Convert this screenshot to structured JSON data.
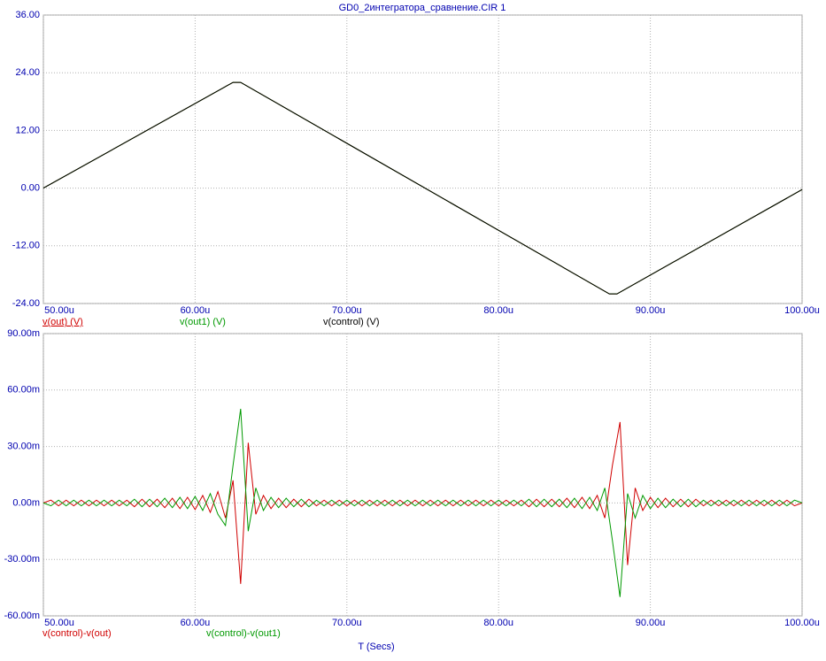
{
  "chart_data": [
    {
      "type": "line",
      "title": "GD0_2интегратора_сравнение.CIR 1",
      "x": [
        50,
        62.5,
        63,
        87.3,
        87.8,
        100
      ],
      "series": [
        {
          "name": "v(out) (V)",
          "color": "#d00000",
          "values": [
            0,
            22,
            22,
            -22,
            -22,
            -0.3
          ]
        },
        {
          "name": "v(out1) (V)",
          "color": "#009900",
          "values": [
            0,
            22,
            22,
            -22,
            -22,
            -0.3
          ]
        },
        {
          "name": "v(control) (V)",
          "color": "#000000",
          "values": [
            0,
            22,
            22,
            -22,
            -22,
            -0.3
          ]
        }
      ],
      "xlim": [
        50,
        100
      ],
      "xticks": [
        {
          "value": 50,
          "label": "50.00u"
        },
        {
          "value": 60,
          "label": "60.00u"
        },
        {
          "value": 70,
          "label": "70.00u"
        },
        {
          "value": 80,
          "label": "80.00u"
        },
        {
          "value": 90,
          "label": "90.00u"
        },
        {
          "value": 100,
          "label": "100.00u"
        }
      ],
      "ylim": [
        -24,
        36
      ],
      "yticks": [
        {
          "value": 36,
          "label": "36.00"
        },
        {
          "value": 24,
          "label": "24.00"
        },
        {
          "value": 12,
          "label": "12.00"
        },
        {
          "value": 0,
          "label": "0.00"
        },
        {
          "value": -12,
          "label": "-12.00"
        },
        {
          "value": -24,
          "label": "-24.00"
        }
      ],
      "grid": true
    },
    {
      "type": "line",
      "xlabel": "T (Secs)",
      "x": [
        50,
        50.5,
        51,
        51.5,
        52,
        52.5,
        53,
        53.5,
        54,
        54.5,
        55,
        55.5,
        56,
        56.5,
        57,
        57.5,
        58,
        58.5,
        59,
        59.5,
        60,
        60.5,
        61,
        61.5,
        62,
        62.5,
        63,
        63.5,
        64,
        64.5,
        65,
        65.5,
        66,
        66.5,
        67,
        67.5,
        68,
        68.5,
        69,
        69.5,
        70,
        70.5,
        71,
        71.5,
        72,
        72.5,
        73,
        73.5,
        74,
        74.5,
        75,
        75.5,
        76,
        76.5,
        77,
        77.5,
        78,
        78.5,
        79,
        79.5,
        80,
        80.5,
        81,
        81.5,
        82,
        82.5,
        83,
        83.5,
        84,
        84.5,
        85,
        85.5,
        86,
        86.5,
        87,
        87.5,
        88,
        88.5,
        89,
        89.5,
        90,
        90.5,
        91,
        91.5,
        92,
        92.5,
        93,
        93.5,
        94,
        94.5,
        95,
        95.5,
        96,
        96.5,
        97,
        97.5,
        98,
        98.5,
        99,
        99.5,
        100
      ],
      "series": [
        {
          "name": "v(control)-v(out)",
          "color": "#d00000",
          "values": [
            0,
            1.5,
            -1.5,
            1.5,
            -1.5,
            1.5,
            -1.5,
            1.5,
            -1.5,
            1.5,
            -1.5,
            1.5,
            -2,
            2,
            -2,
            2,
            -2.5,
            2.5,
            -3,
            3,
            -3.5,
            4,
            -5,
            6,
            -8,
            12,
            -43,
            32,
            -6,
            4,
            -3,
            2.5,
            -2.5,
            2,
            -2,
            2,
            -1.5,
            1.5,
            -1.5,
            1.5,
            -1.5,
            1.5,
            -1.5,
            1.5,
            -1.5,
            1.5,
            -1.5,
            1.5,
            -1.5,
            1.5,
            -1.5,
            1.5,
            -1.5,
            1.5,
            -1.5,
            1.5,
            -1.5,
            1.5,
            -1.5,
            1.5,
            -1.5,
            1.5,
            -1.5,
            1.5,
            -2,
            2,
            -2,
            2,
            -2,
            2.5,
            -2.5,
            3,
            -3,
            4,
            -8,
            20,
            43,
            -33,
            8,
            -4,
            3,
            -2.5,
            2.5,
            -2,
            2,
            -2,
            2,
            -1.5,
            1.5,
            -1.5,
            1.5,
            -1.5,
            1.5,
            -1.5,
            1.5,
            -1.5,
            1.5,
            -1.5,
            1.5,
            -1.5,
            0
          ]
        },
        {
          "name": "v(control)-v(out1)",
          "color": "#009900",
          "values": [
            0,
            -1.5,
            1.5,
            -1.5,
            1.5,
            -1.5,
            1.5,
            -1.5,
            1.5,
            -1.5,
            1.5,
            -1.5,
            2,
            -2,
            2,
            -2,
            2.5,
            -2.5,
            3,
            -3,
            3.5,
            -4,
            5,
            -6,
            -12,
            20,
            50,
            -15,
            8,
            -4,
            3,
            -2.5,
            2.5,
            -2,
            2,
            -2,
            1.5,
            -1.5,
            1.5,
            -1.5,
            1.5,
            -1.5,
            1.5,
            -1.5,
            1.5,
            -1.5,
            1.5,
            -1.5,
            1.5,
            -1.5,
            1.5,
            -1.5,
            1.5,
            -1.5,
            1.5,
            -1.5,
            1.5,
            -1.5,
            1.5,
            -1.5,
            1.5,
            -1.5,
            1.5,
            -1.5,
            2,
            -2,
            2,
            -2,
            2,
            -2.5,
            2.5,
            -3,
            3,
            -4,
            8,
            -20,
            -50,
            5,
            -8,
            4,
            -3,
            2.5,
            -2.5,
            2,
            -2,
            2,
            -2,
            1.5,
            -1.5,
            1.5,
            -1.5,
            1.5,
            -1.5,
            1.5,
            -1.5,
            1.5,
            -1.5,
            1.5,
            -1.5,
            1.5,
            0
          ]
        }
      ],
      "xlim": [
        50,
        100
      ],
      "xticks": [
        {
          "value": 50,
          "label": "50.00u"
        },
        {
          "value": 60,
          "label": "60.00u"
        },
        {
          "value": 70,
          "label": "70.00u"
        },
        {
          "value": 80,
          "label": "80.00u"
        },
        {
          "value": 90,
          "label": "90.00u"
        },
        {
          "value": 100,
          "label": "100.00u"
        }
      ],
      "ylim": [
        -60,
        90
      ],
      "yticks": [
        {
          "value": 90,
          "label": "90.00m"
        },
        {
          "value": 60,
          "label": "60.00m"
        },
        {
          "value": 30,
          "label": "30.00m"
        },
        {
          "value": 0,
          "label": "0.00m"
        },
        {
          "value": -30,
          "label": "-30.00m"
        },
        {
          "value": -60,
          "label": "-60.00m"
        }
      ],
      "grid": true
    }
  ]
}
